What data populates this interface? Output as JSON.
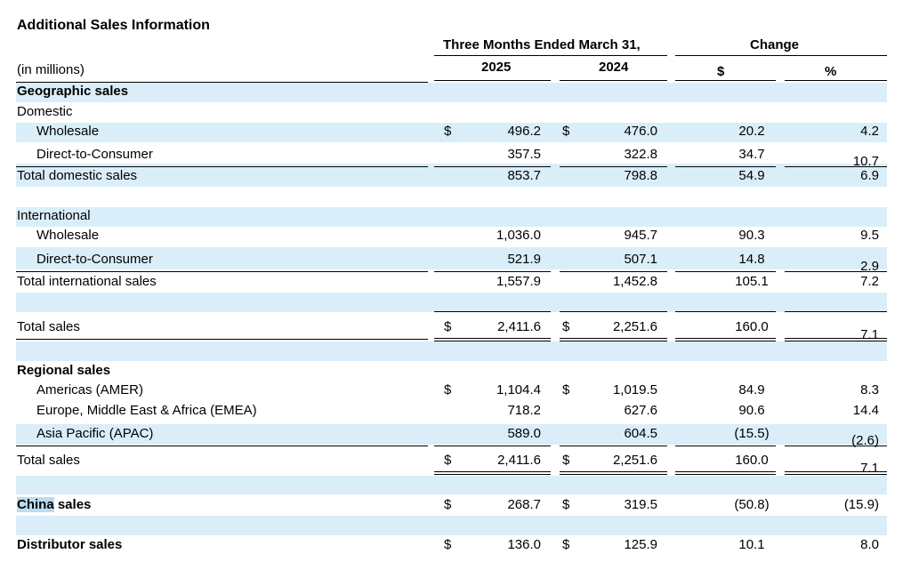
{
  "title": "Additional Sales Information",
  "header": {
    "period": "Three Months Ended March 31,",
    "change": "Change",
    "col_2025": "2025",
    "col_2024": "2024",
    "col_dollar": "$",
    "col_pct": "%",
    "units": "(in millions)"
  },
  "colors": {
    "band": "#daeef9",
    "highlight": "#bcdcee"
  },
  "dollar": "$",
  "rows": [
    {
      "label": "Geographic sales",
      "bold": true
    },
    {
      "label": "Domestic"
    },
    {
      "label": "Wholesale",
      "indent": true,
      "dollar": true,
      "v2025": "496.2",
      "v2024": "476.0",
      "chg": "20.2",
      "pct": "4.2"
    },
    {
      "label": "Direct-to-Consumer",
      "indent": true,
      "v2025": "357.5",
      "v2024": "322.8",
      "chg": "34.7",
      "pct": "10.7"
    },
    {
      "label": "Total domestic sales",
      "v2025": "853.7",
      "v2024": "798.8",
      "chg": "54.9",
      "pct": "6.9"
    },
    {
      "label": "International"
    },
    {
      "label": "Wholesale",
      "indent": true,
      "v2025": "1,036.0",
      "v2024": "945.7",
      "chg": "90.3",
      "pct": "9.5"
    },
    {
      "label": "Direct-to-Consumer",
      "indent": true,
      "v2025": "521.9",
      "v2024": "507.1",
      "chg": "14.8",
      "pct": "2.9"
    },
    {
      "label": "Total international sales",
      "v2025": "1,557.9",
      "v2024": "1,452.8",
      "chg": "105.1",
      "pct": "7.2"
    },
    {
      "label": "Total sales",
      "dollar": true,
      "v2025": "2,411.6",
      "v2024": "2,251.6",
      "chg": "160.0",
      "pct": "7.1"
    },
    {
      "label": "Regional sales",
      "bold": true
    },
    {
      "label": "Americas (AMER)",
      "indent": true,
      "dollar": true,
      "v2025": "1,104.4",
      "v2024": "1,019.5",
      "chg": "84.9",
      "pct": "8.3"
    },
    {
      "label": "Europe, Middle East & Africa (EMEA)",
      "indent": true,
      "v2025": "718.2",
      "v2024": "627.6",
      "chg": "90.6",
      "pct": "14.4"
    },
    {
      "label": "Asia Pacific (APAC)",
      "indent": true,
      "v2025": "589.0",
      "v2024": "604.5",
      "chg": "(15.5)",
      "pct": "(2.6)"
    },
    {
      "label": "Total sales",
      "dollar": true,
      "v2025": "2,411.6",
      "v2024": "2,251.6",
      "chg": "160.0",
      "pct": "7.1"
    },
    {
      "label": "China sales",
      "bold": true,
      "highlight_word": "China",
      "rest": " sales",
      "dollar": true,
      "v2025": "268.7",
      "v2024": "319.5",
      "chg": "(50.8)",
      "pct": "(15.9)"
    },
    {
      "label": "Distributor sales",
      "bold": true,
      "dollar": true,
      "v2025": "136.0",
      "v2024": "125.9",
      "chg": "10.1",
      "pct": "8.0"
    }
  ]
}
